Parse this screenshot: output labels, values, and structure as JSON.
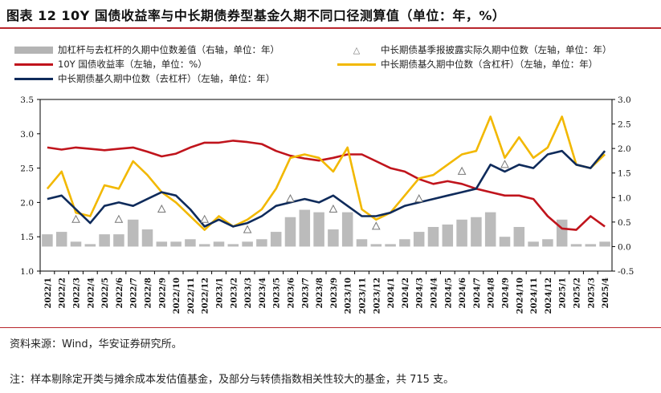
{
  "title": "图表 12 10Y 国债收益率与中长期债券型基金久期不同口径测算值（单位：年，%）",
  "source": "资料来源：Wind，华安证券研究所。",
  "note": "注：样本剔除定开类与摊余成本发估值基金，及部分与转债指数相关性较大的基金，共 715 支。",
  "legend": {
    "bar": "加杠杆与去杠杆的久期中位数差值（右轴，单位：年）",
    "tri": "中长期债基季报披露实际久期中位数（左轴，单位：年）",
    "red": "10Y 国债收益率（左轴，单位：%）",
    "yellow": "中长期债基久期中位数（含杠杆）（左轴，单位：年）",
    "navy": "中长期债基久期中位数（去杠杆）（左轴，单位：年）"
  },
  "chart_data": {
    "type": "line",
    "x": [
      "2022/1",
      "2022/2",
      "2022/3",
      "2022/4",
      "2022/5",
      "2022/6",
      "2022/7",
      "2022/8",
      "2022/9",
      "2022/10",
      "2022/11",
      "2022/12",
      "2023/1",
      "2023/2",
      "2023/3",
      "2023/4",
      "2023/5",
      "2023/6",
      "2023/7",
      "2023/8",
      "2023/9",
      "2023/10",
      "2023/11",
      "2023/12",
      "2024/1",
      "2024/2",
      "2024/3",
      "2024/4",
      "2024/5",
      "2024/6",
      "2024/7",
      "2024/8",
      "2024/9",
      "2024/10",
      "2024/11",
      "2024/12",
      "2025/1",
      "2025/2",
      "2025/3",
      "2025/4"
    ],
    "y_left": {
      "min": 1.0,
      "max": 3.5,
      "ticks": [
        "1.0",
        "1.5",
        "2.0",
        "2.5",
        "3.0",
        "3.5"
      ]
    },
    "y_right": {
      "min": -0.5,
      "max": 3.0,
      "ticks": [
        "-0.5",
        "0.0",
        "0.5",
        "1.0",
        "1.5",
        "2.0",
        "2.5",
        "3.0"
      ]
    },
    "series": [
      {
        "name": "10Y 国债收益率（左轴，单位：%）",
        "axis": "left",
        "color": "#c0141c",
        "values": [
          2.8,
          2.77,
          2.8,
          2.78,
          2.76,
          2.78,
          2.8,
          2.74,
          2.67,
          2.71,
          2.8,
          2.87,
          2.87,
          2.9,
          2.88,
          2.85,
          2.75,
          2.68,
          2.64,
          2.61,
          2.65,
          2.7,
          2.7,
          2.6,
          2.5,
          2.45,
          2.34,
          2.27,
          2.31,
          2.27,
          2.2,
          2.15,
          2.1,
          2.1,
          2.05,
          1.8,
          1.62,
          1.6,
          1.8,
          1.65
        ]
      },
      {
        "name": "中长期债基久期中位数（含杠杆）（左轴，单位：年）",
        "axis": "left",
        "color": "#f2b800",
        "values": [
          2.2,
          2.45,
          1.85,
          1.8,
          2.25,
          2.2,
          2.6,
          2.4,
          2.15,
          2.0,
          1.8,
          1.6,
          1.8,
          1.65,
          1.75,
          1.9,
          2.2,
          2.65,
          2.7,
          2.65,
          2.45,
          2.8,
          1.9,
          1.75,
          1.85,
          2.1,
          2.35,
          2.4,
          2.55,
          2.7,
          2.75,
          3.25,
          2.65,
          2.95,
          2.65,
          2.8,
          3.25,
          2.55,
          2.5,
          2.7
        ]
      },
      {
        "name": "中长期债基久期中位数（去杠杆）（左轴，单位：年）",
        "axis": "left",
        "color": "#0f2b5b",
        "values": [
          2.05,
          2.1,
          1.9,
          1.7,
          1.95,
          2.0,
          1.95,
          2.05,
          2.15,
          2.1,
          1.9,
          1.65,
          1.75,
          1.65,
          1.7,
          1.8,
          1.95,
          2.0,
          2.05,
          2.0,
          2.1,
          1.95,
          1.8,
          1.8,
          1.85,
          1.95,
          2.0,
          2.05,
          2.1,
          2.15,
          2.2,
          2.55,
          2.45,
          2.55,
          2.5,
          2.7,
          2.75,
          2.55,
          2.5,
          2.75
        ]
      },
      {
        "name": "加杠杆与去杠杆的久期中位数差值（右轴，单位：年）",
        "axis": "right",
        "type": "bar",
        "color": "#b4b4b4",
        "values": [
          0.25,
          0.3,
          0.1,
          0.05,
          0.25,
          0.25,
          0.55,
          0.35,
          0.1,
          0.1,
          0.15,
          0.05,
          0.1,
          0.05,
          0.1,
          0.15,
          0.3,
          0.6,
          0.75,
          0.7,
          0.35,
          0.7,
          0.15,
          0.05,
          0.05,
          0.15,
          0.3,
          0.4,
          0.45,
          0.55,
          0.6,
          0.7,
          0.2,
          0.4,
          0.1,
          0.15,
          0.55,
          0.05,
          0.05,
          0.1
        ]
      },
      {
        "name": "中长期债基季报披露实际久期中位数（左轴，单位：年）",
        "axis": "left",
        "type": "scatter",
        "color": "#777777",
        "points": [
          [
            "2022/3",
            1.75
          ],
          [
            "2022/6",
            1.75
          ],
          [
            "2022/9",
            1.9
          ],
          [
            "2022/12",
            1.75
          ],
          [
            "2023/3",
            1.6
          ],
          [
            "2023/6",
            2.05
          ],
          [
            "2023/9",
            1.9
          ],
          [
            "2023/12",
            1.65
          ],
          [
            "2024/3",
            2.05
          ],
          [
            "2024/6",
            2.45
          ],
          [
            "2024/9",
            2.55
          ]
        ]
      }
    ]
  }
}
